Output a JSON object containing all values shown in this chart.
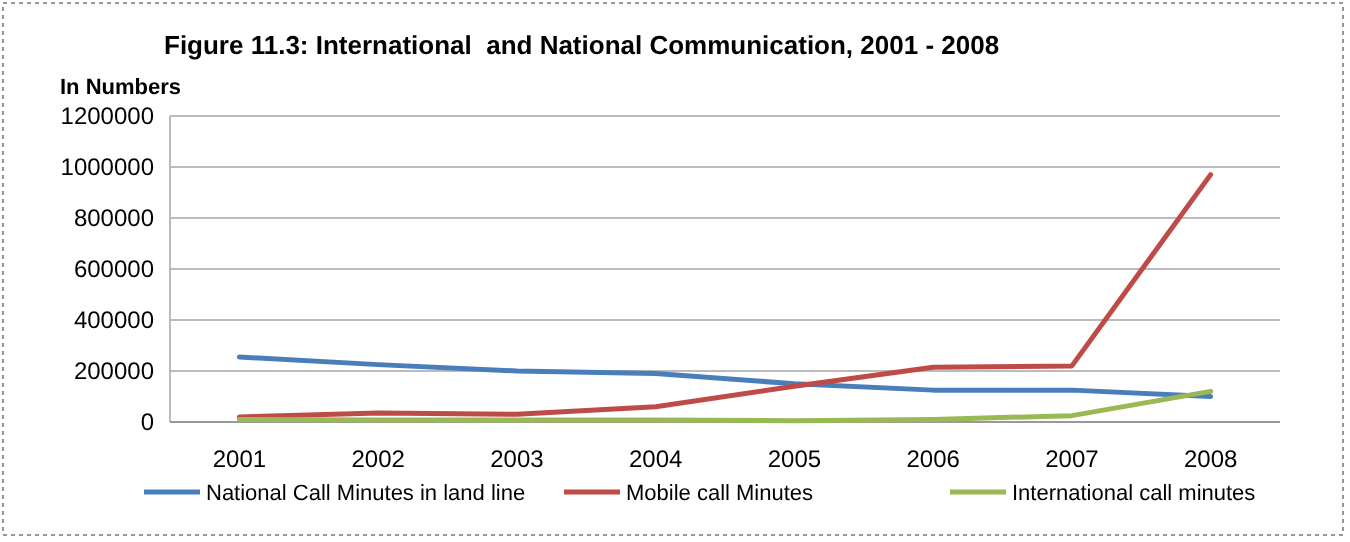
{
  "chart_data": {
    "type": "line",
    "title": "Figure 11.3: International  and National Communication, 2001 - 2008",
    "ylabel": "In Numbers",
    "categories": [
      "2001",
      "2002",
      "2003",
      "2004",
      "2005",
      "2006",
      "2007",
      "2008"
    ],
    "series": [
      {
        "name": "National Call Minutes in land line",
        "color": "#4a7ebb",
        "values": [
          255000,
          225000,
          200000,
          190000,
          150000,
          125000,
          125000,
          100000
        ]
      },
      {
        "name": "Mobile call Minutes",
        "color": "#be4b48",
        "values": [
          20000,
          35000,
          30000,
          60000,
          140000,
          215000,
          220000,
          970000
        ]
      },
      {
        "name": "International call minutes",
        "color": "#98b954",
        "values": [
          10000,
          8000,
          8000,
          8000,
          5000,
          10000,
          25000,
          120000
        ]
      }
    ],
    "ylim": [
      0,
      1200000
    ],
    "yticks": [
      0,
      200000,
      400000,
      600000,
      800000,
      1000000,
      1200000
    ],
    "grid": "y",
    "legend": "bottom",
    "line_style": "solid",
    "marker": "none"
  }
}
